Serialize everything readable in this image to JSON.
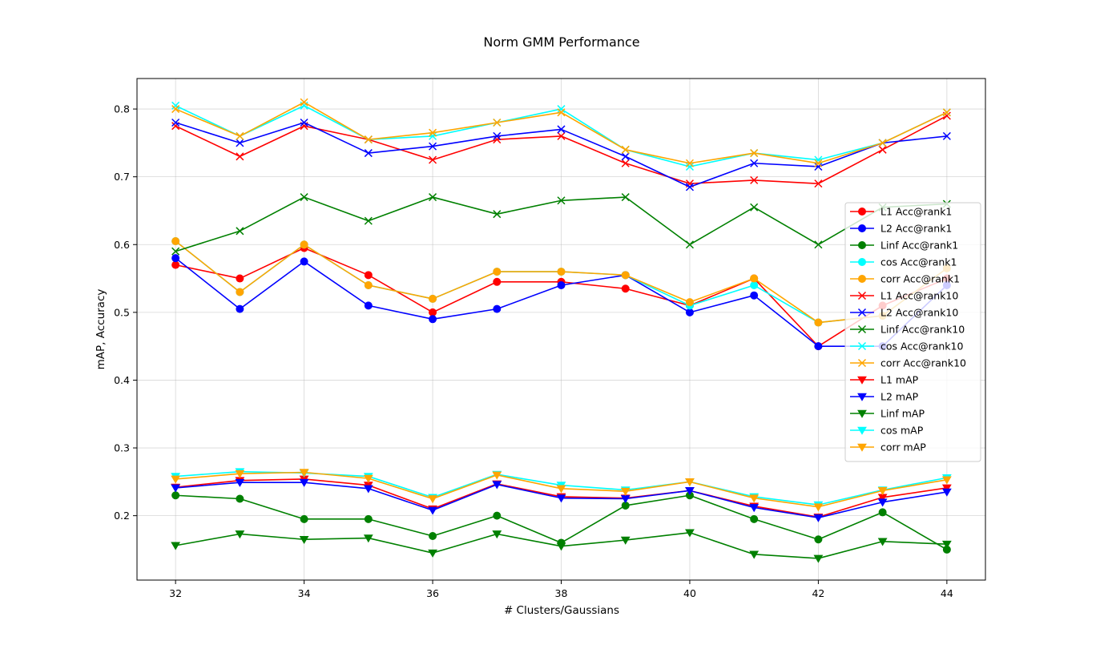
{
  "chart_data": {
    "type": "line",
    "title": "Norm GMM Performance",
    "xlabel": "# Clusters/Gaussians",
    "ylabel": "mAP, Accuracy",
    "xlim": [
      31.4,
      44.6
    ],
    "ylim": [
      0.105,
      0.845
    ],
    "xticks": [
      32,
      34,
      36,
      38,
      40,
      42,
      44
    ],
    "yticks": [
      0.2,
      0.3,
      0.4,
      0.5,
      0.6,
      0.7,
      0.8
    ],
    "grid": true,
    "legend_position": "right",
    "x": [
      32,
      33,
      34,
      35,
      36,
      37,
      38,
      39,
      40,
      41,
      42,
      43,
      44
    ],
    "series": [
      {
        "name": "L1 Acc@rank1",
        "color": "#ff0000",
        "marker": "circle",
        "values": [
          0.57,
          0.55,
          0.595,
          0.555,
          0.5,
          0.545,
          0.545,
          0.535,
          0.51,
          0.55,
          0.45,
          0.51,
          0.55
        ]
      },
      {
        "name": "L2 Acc@rank1",
        "color": "#0000ff",
        "marker": "circle",
        "values": [
          0.58,
          0.505,
          0.575,
          0.51,
          0.49,
          0.505,
          0.54,
          0.555,
          0.5,
          0.525,
          0.45,
          0.45,
          0.54
        ]
      },
      {
        "name": "Linf Acc@rank1",
        "color": "#008000",
        "marker": "circle",
        "values": [
          0.23,
          0.225,
          0.195,
          0.195,
          0.17,
          0.2,
          0.16,
          0.215,
          0.23,
          0.195,
          0.165,
          0.205,
          0.15
        ]
      },
      {
        "name": "cos Acc@rank1",
        "color": "#00ffff",
        "marker": "circle",
        "values": [
          0.605,
          0.53,
          0.6,
          0.54,
          0.52,
          0.56,
          0.56,
          0.555,
          0.51,
          0.54,
          0.485,
          0.495,
          0.565
        ]
      },
      {
        "name": "corr Acc@rank1",
        "color": "#ffa500",
        "marker": "circle",
        "values": [
          0.605,
          0.53,
          0.6,
          0.54,
          0.52,
          0.56,
          0.56,
          0.555,
          0.515,
          0.55,
          0.485,
          0.495,
          0.565
        ]
      },
      {
        "name": "L1 Acc@rank10",
        "color": "#ff0000",
        "marker": "x",
        "values": [
          0.775,
          0.73,
          0.775,
          0.755,
          0.725,
          0.755,
          0.76,
          0.72,
          0.69,
          0.695,
          0.69,
          0.74,
          0.79
        ]
      },
      {
        "name": "L2 Acc@rank10",
        "color": "#0000ff",
        "marker": "x",
        "values": [
          0.78,
          0.75,
          0.78,
          0.735,
          0.745,
          0.76,
          0.77,
          0.73,
          0.685,
          0.72,
          0.715,
          0.75,
          0.76
        ]
      },
      {
        "name": "Linf Acc@rank10",
        "color": "#008000",
        "marker": "x",
        "values": [
          0.59,
          0.62,
          0.67,
          0.635,
          0.67,
          0.645,
          0.665,
          0.67,
          0.6,
          0.655,
          0.6,
          0.655,
          0.66
        ]
      },
      {
        "name": "cos Acc@rank10",
        "color": "#00ffff",
        "marker": "x",
        "values": [
          0.805,
          0.76,
          0.805,
          0.755,
          0.76,
          0.78,
          0.8,
          0.74,
          0.715,
          0.735,
          0.725,
          0.75,
          0.795
        ]
      },
      {
        "name": "corr Acc@rank10",
        "color": "#ffa500",
        "marker": "x",
        "values": [
          0.8,
          0.76,
          0.81,
          0.755,
          0.765,
          0.78,
          0.795,
          0.74,
          0.72,
          0.735,
          0.72,
          0.75,
          0.795
        ]
      },
      {
        "name": "L1 mAP",
        "color": "#ff0000",
        "marker": "triangle-down",
        "values": [
          0.242,
          0.252,
          0.254,
          0.245,
          0.21,
          0.247,
          0.228,
          0.226,
          0.237,
          0.214,
          0.198,
          0.227,
          0.241
        ]
      },
      {
        "name": "L2 mAP",
        "color": "#0000ff",
        "marker": "triangle-down",
        "values": [
          0.241,
          0.249,
          0.249,
          0.24,
          0.208,
          0.246,
          0.226,
          0.225,
          0.237,
          0.212,
          0.197,
          0.22,
          0.235
        ]
      },
      {
        "name": "Linf mAP",
        "color": "#008000",
        "marker": "triangle-down",
        "values": [
          0.156,
          0.173,
          0.165,
          0.167,
          0.145,
          0.173,
          0.155,
          0.164,
          0.175,
          0.143,
          0.137,
          0.162,
          0.158
        ]
      },
      {
        "name": "cos mAP",
        "color": "#00ffff",
        "marker": "triangle-down",
        "values": [
          0.258,
          0.265,
          0.263,
          0.258,
          0.227,
          0.261,
          0.245,
          0.238,
          0.25,
          0.228,
          0.216,
          0.238,
          0.256
        ]
      },
      {
        "name": "corr mAP",
        "color": "#ffa500",
        "marker": "triangle-down",
        "values": [
          0.254,
          0.262,
          0.264,
          0.255,
          0.225,
          0.26,
          0.24,
          0.236,
          0.25,
          0.226,
          0.213,
          0.237,
          0.253
        ]
      }
    ]
  }
}
